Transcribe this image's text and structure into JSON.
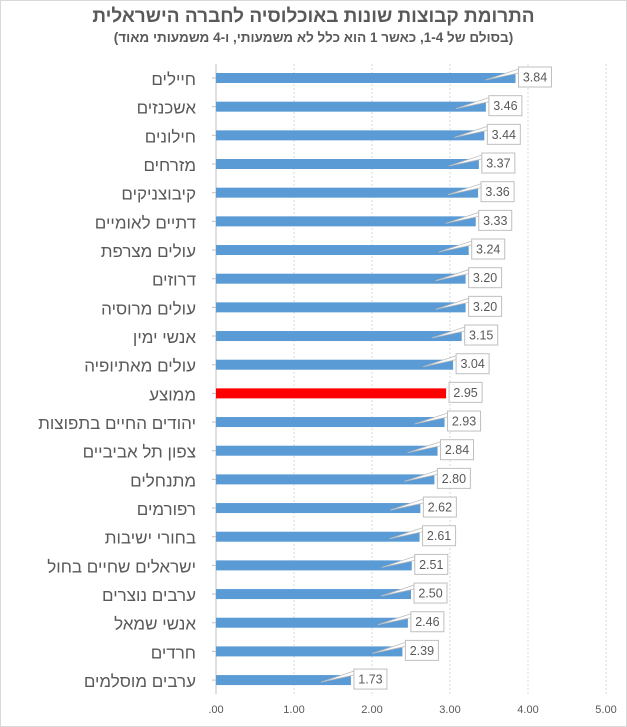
{
  "chart_data": {
    "type": "bar",
    "orientation": "horizontal",
    "title": "התרומת קבוצות שונות באוכלוסיה לחברה הישראלית",
    "subtitle": "(בסולם של 1-4, כאשר 1 הוא כלל לא משמעותי, ו-4 משמעותי מאוד)",
    "categories": [
      "חיילים",
      "אשכנזים",
      "חילונים",
      "מזרחים",
      "קיבוצניקים",
      "דתיים לאומיים",
      "עולים מצרפת",
      "דרוזים",
      "עולים מרוסיה",
      "אנשי ימין",
      "עולים מאתיופיה",
      "ממוצע",
      "יהודים החיים בתפוצות",
      "צפון תל אביביים",
      "מתנחלים",
      "רפורמים",
      "בחורי ישיבות",
      "ישראלים שחיים בחול",
      "ערבים נוצרים",
      "אנשי שמאל",
      "חרדים",
      "ערבים מוסלמים"
    ],
    "values": [
      3.84,
      3.46,
      3.44,
      3.37,
      3.36,
      3.33,
      3.24,
      3.2,
      3.2,
      3.15,
      3.04,
      2.95,
      2.93,
      2.84,
      2.8,
      2.62,
      2.61,
      2.51,
      2.5,
      2.46,
      2.39,
      1.73
    ],
    "value_labels": [
      "3.84",
      "3.46",
      "3.44",
      "3.37",
      "3.36",
      "3.33",
      "3.24",
      "3.20",
      "3.20",
      "3.15",
      "3.04",
      "2.95",
      "2.93",
      "2.84",
      "2.80",
      "2.62",
      "2.61",
      "2.51",
      "2.50",
      "2.46",
      "2.39",
      "1.73"
    ],
    "highlight_category": "ממוצע",
    "xlim": [
      0,
      5
    ],
    "x_ticks": [
      ".00",
      "1.00",
      "2.00",
      "3.00",
      "4.00",
      "5.00"
    ],
    "grid": true,
    "legend": "none",
    "colors": {
      "bar": "#5b9bd5",
      "highlight": "#ff0000",
      "text": "#595959",
      "grid": "#d9d9d9"
    }
  }
}
